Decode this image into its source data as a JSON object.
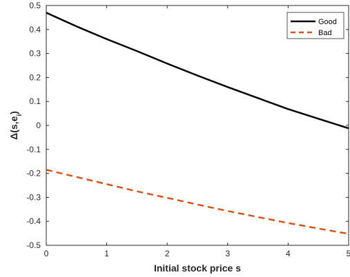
{
  "chart_data": {
    "type": "line",
    "xlabel": "Initial stock price s",
    "ylabel": "Δ(s,e_i)",
    "ylabel_main": "Δ(s,e",
    "ylabel_sub": "i",
    "ylabel_close": ")",
    "xlim": [
      0,
      5
    ],
    "ylim": [
      -0.5,
      0.5
    ],
    "xticks": [
      0,
      1,
      2,
      3,
      4,
      5
    ],
    "yticks": [
      -0.5,
      -0.4,
      -0.3,
      -0.2,
      -0.1,
      0,
      0.1,
      0.2,
      0.3,
      0.4,
      0.5
    ],
    "legend_position": "top-right",
    "grid": false,
    "series": [
      {
        "name": "Good",
        "color": "#000000",
        "style": "solid",
        "x": [
          0,
          0.5,
          1,
          1.5,
          2,
          2.5,
          3,
          3.5,
          4,
          4.5,
          5
        ],
        "y": [
          0.47,
          0.413,
          0.36,
          0.31,
          0.258,
          0.208,
          0.16,
          0.114,
          0.068,
          0.028,
          -0.012
        ]
      },
      {
        "name": "Bad",
        "color": "#D95319",
        "style": "dashed",
        "x": [
          0,
          0.5,
          1,
          1.5,
          2,
          2.5,
          3,
          3.5,
          4,
          4.5,
          5
        ],
        "y": [
          -0.185,
          -0.215,
          -0.245,
          -0.275,
          -0.302,
          -0.33,
          -0.357,
          -0.382,
          -0.407,
          -0.43,
          -0.452
        ]
      }
    ]
  }
}
